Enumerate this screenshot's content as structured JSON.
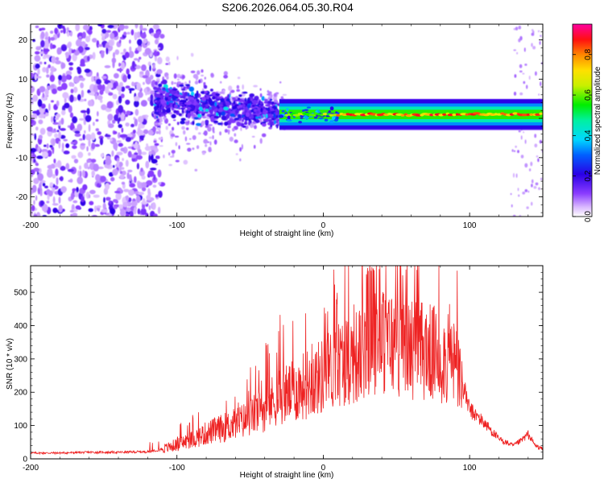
{
  "title": "S206.2026.064.05.30.R04",
  "chart_data": [
    {
      "type": "heatmap",
      "name": "spectrogram",
      "xlabel": "Height of straight line (km)",
      "ylabel": "Frequency (Hz)",
      "xlim": [
        -200,
        150
      ],
      "ylim": [
        -25,
        24
      ],
      "xticks": [
        -200,
        -100,
        0,
        100
      ],
      "yticks": [
        -20,
        -10,
        0,
        10,
        20
      ],
      "colorbar": {
        "label": "Normalized spectral amplitude",
        "range": [
          0,
          0.95
        ],
        "ticks": [
          0.0,
          0.2,
          0.4,
          0.6,
          0.8
        ],
        "tick_labels": [
          "0.0",
          "0.2",
          "0.4",
          "0.6",
          "0.8"
        ]
      },
      "features": [
        {
          "description": "scattered noise",
          "x_range": [
            -200,
            -115
          ],
          "freq_range": [
            -25,
            24
          ],
          "amplitude": 0.1
        },
        {
          "description": "dense cluster",
          "x_range": [
            -115,
            -30
          ],
          "freq_range": [
            -12,
            10
          ],
          "amplitude": 0.2
        },
        {
          "description": "carrier line",
          "x_range": [
            -30,
            150
          ],
          "freq": 1,
          "amplitude": 0.9
        }
      ]
    },
    {
      "type": "line",
      "name": "snr",
      "xlabel": "Height of straight line (km)",
      "ylabel": "SNR (10 * v/v)",
      "xlim": [
        -200,
        150
      ],
      "ylim": [
        0,
        580
      ],
      "xticks": [
        -200,
        -100,
        0,
        100
      ],
      "yticks": [
        0,
        100,
        200,
        300,
        400,
        500
      ],
      "color": "#ee2222",
      "series": [
        {
          "name": "SNR",
          "x": [
            -200,
            -180,
            -160,
            -140,
            -120,
            -110,
            -100,
            -90,
            -80,
            -70,
            -60,
            -50,
            -40,
            -30,
            -20,
            -10,
            0,
            10,
            20,
            30,
            35,
            40,
            50,
            60,
            70,
            80,
            90,
            95,
            100,
            110,
            120,
            130,
            135,
            140,
            145,
            150
          ],
          "y": [
            18,
            18,
            20,
            20,
            22,
            30,
            45,
            60,
            80,
            95,
            110,
            130,
            160,
            200,
            210,
            240,
            260,
            300,
            320,
            330,
            380,
            370,
            360,
            350,
            340,
            320,
            300,
            230,
            150,
            110,
            60,
            40,
            55,
            75,
            40,
            30
          ]
        }
      ]
    }
  ]
}
